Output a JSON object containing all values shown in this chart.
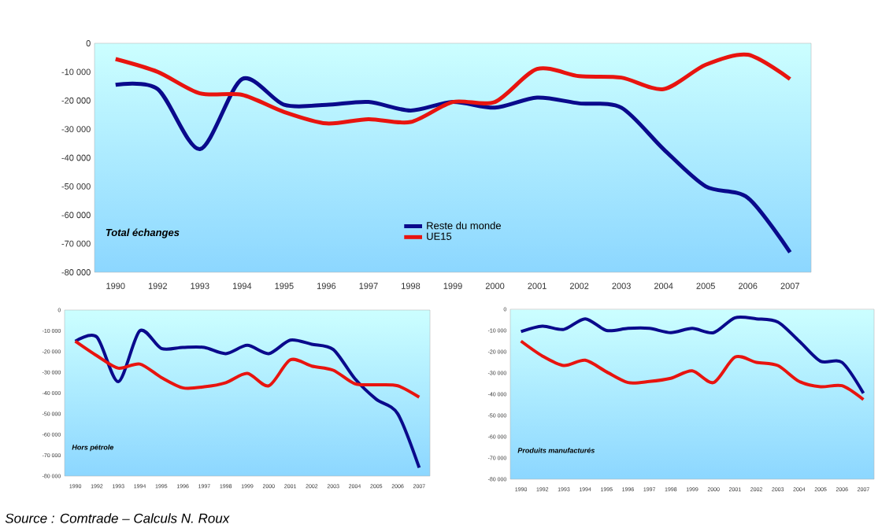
{
  "chart_data": [
    {
      "type": "line",
      "title": "Total échanges",
      "categories": [
        "1990",
        "1992",
        "1993",
        "1994",
        "1995",
        "1996",
        "1997",
        "1998",
        "1999",
        "2000",
        "2001",
        "2002",
        "2003",
        "2004",
        "2005",
        "2006",
        "2007"
      ],
      "series": [
        {
          "name": "Reste du monde",
          "color": "#0a0a8c",
          "values": [
            -14500,
            -16000,
            -37000,
            -12500,
            -21500,
            -21500,
            -20500,
            -23500,
            -20500,
            -22500,
            -19000,
            -21000,
            -22500,
            -37000,
            -50000,
            -54000,
            -73000
          ]
        },
        {
          "name": "UE15",
          "color": "#e8140f",
          "values": [
            -5500,
            -10000,
            -17500,
            -18000,
            -24000,
            -28000,
            -26500,
            -27500,
            -20500,
            -20500,
            -9000,
            -11500,
            -12000,
            -16000,
            -7500,
            -4000,
            -12500
          ]
        }
      ],
      "ylim": [
        -80000,
        0
      ],
      "yticks": [
        {
          "value": -80000,
          "label": "-80 000"
        },
        {
          "value": -70000,
          "label": "-70 000"
        },
        {
          "value": -60000,
          "label": "-60 000"
        },
        {
          "value": -50000,
          "label": "-50 000"
        },
        {
          "value": -40000,
          "label": "-40 000"
        },
        {
          "value": -30000,
          "label": "-30 000"
        },
        {
          "value": -20000,
          "label": "-20 000"
        },
        {
          "value": -10000,
          "label": "-10 000"
        },
        0
      ],
      "legend": "bottom",
      "grid": false,
      "annotations": [
        "Source : Comtrade – Calculs N. Roux"
      ]
    },
    {
      "type": "line",
      "title": "Hors pétrole",
      "categories": [
        "1990",
        "1992",
        "1993",
        "1994",
        "1995",
        "1996",
        "1997",
        "1998",
        "1999",
        "2000",
        "2001",
        "2002",
        "2003",
        "2004",
        "2005",
        "2006",
        "2007"
      ],
      "series": [
        {
          "color": "#0a0a8c",
          "values": [
            -15000,
            -13000,
            -34500,
            -10000,
            -18500,
            -18000,
            -18000,
            -21000,
            -17000,
            -21000,
            -14500,
            -16500,
            -19000,
            -33000,
            -43000,
            -50000,
            -76000
          ]
        },
        {
          "color": "#e8140f",
          "values": [
            -15000,
            -22000,
            -28000,
            -26000,
            -32500,
            -37500,
            -37000,
            -35000,
            -30500,
            -36500,
            -24000,
            -27000,
            -29000,
            -35500,
            -36000,
            -36500,
            -42000
          ]
        }
      ],
      "ylim": [
        -80000,
        0
      ],
      "yticks": [
        {
          "value": -80000,
          "label": "-80 000"
        },
        {
          "value": -70000,
          "label": "-70 000"
        },
        {
          "value": -60000,
          "label": "-60 000"
        },
        {
          "value": -50000,
          "label": "-50 000"
        },
        {
          "value": -40000,
          "label": "-40 000"
        },
        {
          "value": -30000,
          "label": "-30 000"
        },
        {
          "value": -20000,
          "label": "-20 000"
        },
        {
          "value": -10000,
          "label": "-10 000"
        },
        0
      ],
      "grid": false
    },
    {
      "type": "line",
      "title": "Produits manufacturés",
      "categories": [
        "1990",
        "1992",
        "1993",
        "1994",
        "1995",
        "1996",
        "1997",
        "1998",
        "1999",
        "2000",
        "2001",
        "2002",
        "2003",
        "2004",
        "2005",
        "2006",
        "2007"
      ],
      "series": [
        {
          "color": "#0a0a8c",
          "values": [
            -10500,
            -8000,
            -9500,
            -4500,
            -10000,
            -9000,
            -9000,
            -11000,
            -9000,
            -11000,
            -4000,
            -4500,
            -6000,
            -15000,
            -24500,
            -25000,
            -39500
          ]
        },
        {
          "color": "#e8140f",
          "values": [
            -15000,
            -22000,
            -26500,
            -24000,
            -29500,
            -34500,
            -34000,
            -32500,
            -29000,
            -34500,
            -22500,
            -25000,
            -26500,
            -34000,
            -36500,
            -36000,
            -42500
          ]
        }
      ],
      "ylim": [
        -80000,
        0
      ],
      "yticks": [
        {
          "value": -80000,
          "label": "-80 000"
        },
        {
          "value": -70000,
          "label": "-70 000"
        },
        {
          "value": -60000,
          "label": "-60 000"
        },
        {
          "value": -50000,
          "label": "-50 000"
        },
        {
          "value": -40000,
          "label": "-40 000"
        },
        {
          "value": -30000,
          "label": "-30 000"
        },
        {
          "value": -20000,
          "label": "-20 000"
        },
        {
          "value": -10000,
          "label": "-10 000"
        },
        0
      ],
      "grid": false
    }
  ]
}
